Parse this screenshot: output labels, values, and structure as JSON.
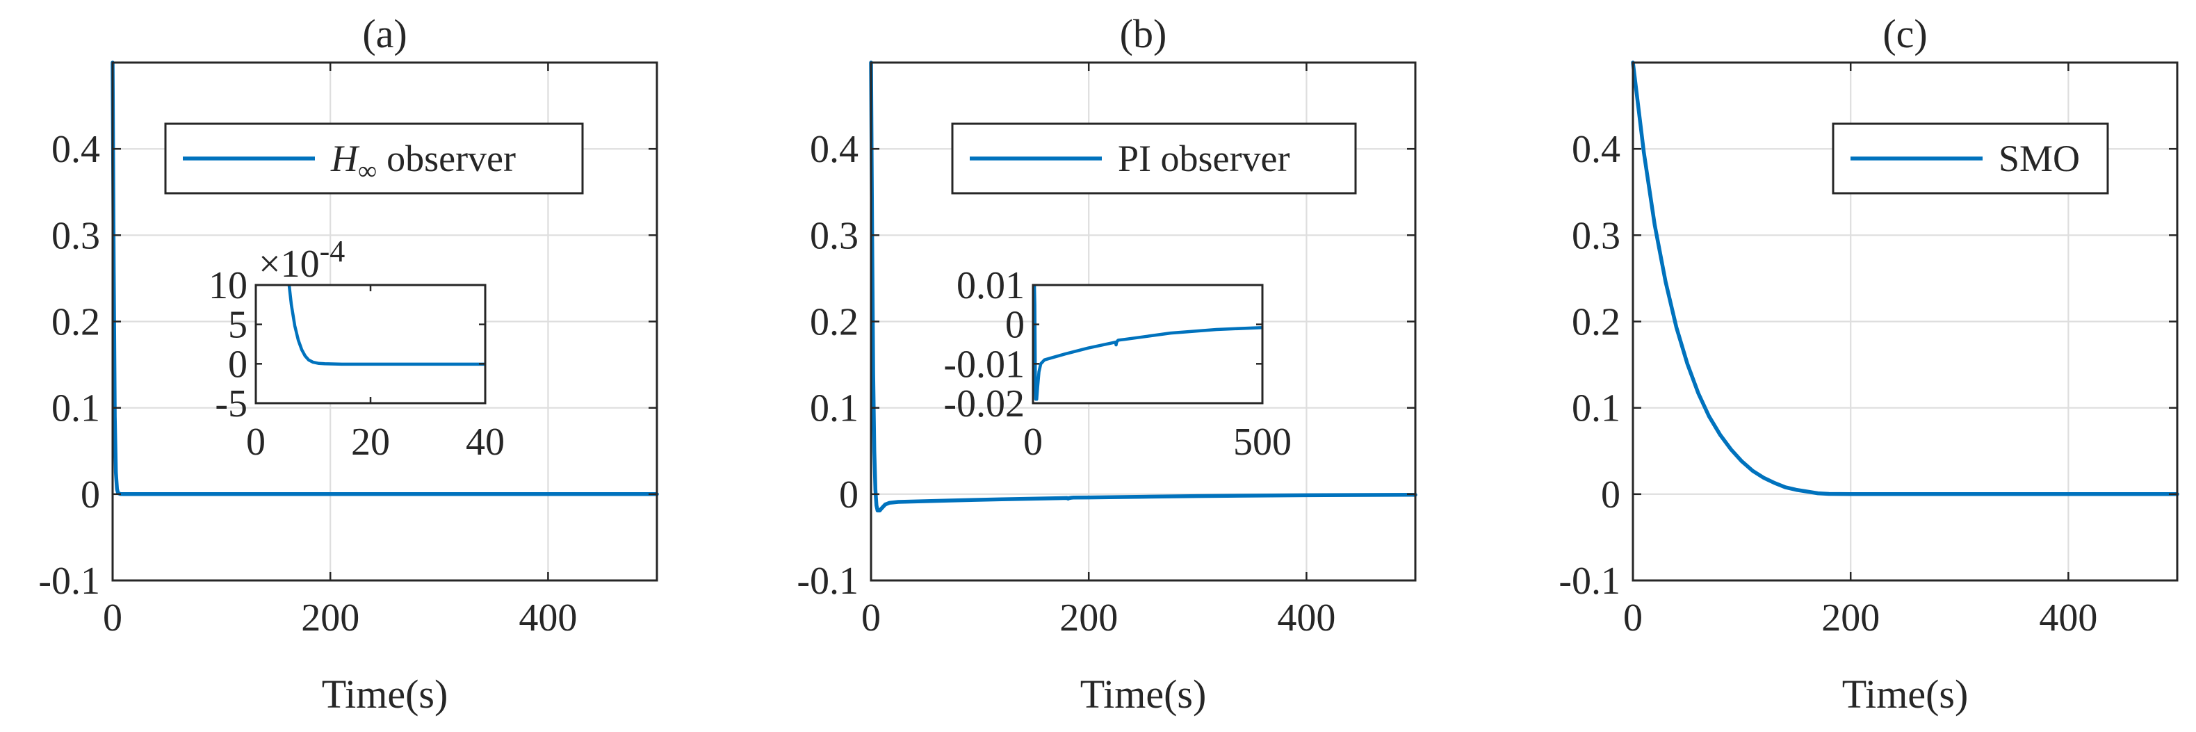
{
  "colors": {
    "series": "#0072bd",
    "axes": "#262626",
    "grid": "#dedede"
  },
  "chart_data": [
    {
      "type": "line",
      "title": "(a)",
      "xlabel": "Time(s)",
      "ylabel": "",
      "xlim": [
        0,
        500
      ],
      "ylim": [
        -0.1,
        0.5
      ],
      "xticks": [
        0,
        200,
        400
      ],
      "xtick_labels": [
        "0",
        "200",
        "400"
      ],
      "yticks": [
        -0.1,
        0,
        0.1,
        0.2,
        0.3,
        0.4
      ],
      "ytick_labels": [
        "-0.1",
        "0",
        "0.1",
        "0.2",
        "0.3",
        "0.4"
      ],
      "grid": true,
      "legend": {
        "position": "top-center",
        "entries": [
          {
            "name": "H∞ observer",
            "math_base": "H",
            "math_sub": "∞",
            "text": "observer"
          }
        ]
      },
      "series": [
        {
          "name": "H∞ observer",
          "x": [
            0,
            1,
            2,
            3,
            4,
            5,
            7,
            10,
            20,
            50,
            100,
            200,
            300,
            400,
            500
          ],
          "y": [
            0.5,
            0.26,
            0.09,
            0.025,
            0.006,
            0.0012,
            0.0002,
            0,
            0,
            0,
            0,
            0,
            0,
            0,
            0
          ]
        }
      ],
      "inset": {
        "xlim": [
          0,
          40
        ],
        "ylim": [
          -5,
          10
        ],
        "xticks": [
          0,
          20,
          40
        ],
        "xtick_labels": [
          "0",
          "20",
          "40"
        ],
        "yticks": [
          -5,
          0,
          5,
          10
        ],
        "ytick_labels": [
          "-5",
          "0",
          "5",
          "10"
        ],
        "exponent_label": {
          "base": "×10",
          "power": "-4"
        },
        "x": [
          5.8,
          6.2,
          6.8,
          7.4,
          8,
          8.6,
          9.2,
          10,
          11,
          12,
          15,
          20,
          30,
          40
        ],
        "y": [
          10,
          7.5,
          4.8,
          3,
          1.8,
          1,
          0.5,
          0.2,
          0.05,
          0,
          -0.05,
          -0.05,
          -0.05,
          -0.05
        ]
      }
    },
    {
      "type": "line",
      "title": "(b)",
      "xlabel": "Time(s)",
      "ylabel": "",
      "xlim": [
        0,
        500
      ],
      "ylim": [
        -0.1,
        0.5
      ],
      "xticks": [
        0,
        200,
        400
      ],
      "xtick_labels": [
        "0",
        "200",
        "400"
      ],
      "yticks": [
        -0.1,
        0,
        0.1,
        0.2,
        0.3,
        0.4
      ],
      "ytick_labels": [
        "-0.1",
        "0",
        "0.1",
        "0.2",
        "0.3",
        "0.4"
      ],
      "grid": true,
      "legend": {
        "position": "top-center",
        "entries": [
          {
            "name": "PI observer",
            "text": "PI observer"
          }
        ]
      },
      "series": [
        {
          "name": "PI observer",
          "x": [
            0,
            1,
            2,
            3,
            4,
            5,
            6,
            8,
            10,
            13,
            17,
            25,
            40,
            70,
            120,
            180,
            181,
            182,
            184,
            186,
            200,
            250,
            300,
            400,
            500
          ],
          "y": [
            0.5,
            0.3,
            0.14,
            0.05,
            0.005,
            -0.013,
            -0.019,
            -0.019,
            -0.016,
            -0.012,
            -0.01,
            -0.009,
            -0.0085,
            -0.0075,
            -0.006,
            -0.0045,
            -0.0052,
            -0.0046,
            -0.0042,
            -0.004,
            -0.0038,
            -0.003,
            -0.0022,
            -0.0013,
            -0.0008
          ]
        }
      ],
      "inset": {
        "xlim": [
          0,
          500
        ],
        "ylim": [
          -0.02,
          0.01
        ],
        "xticks": [
          0,
          500
        ],
        "xtick_labels": [
          "0",
          "500"
        ],
        "yticks": [
          -0.02,
          -0.01,
          0,
          0.01
        ],
        "ytick_labels": [
          "-0.02",
          "-0.01",
          "0",
          "0.01"
        ],
        "x": [
          0,
          1,
          2,
          3,
          4,
          5,
          6,
          8,
          10,
          13,
          17,
          25,
          40,
          70,
          120,
          180,
          181,
          182,
          184,
          186,
          200,
          250,
          300,
          400,
          500
        ],
        "y": [
          0.01,
          0.01,
          0.01,
          0.01,
          0.005,
          -0.013,
          -0.019,
          -0.019,
          -0.016,
          -0.012,
          -0.01,
          -0.009,
          -0.0085,
          -0.0075,
          -0.006,
          -0.0045,
          -0.0052,
          -0.0046,
          -0.0042,
          -0.004,
          -0.0038,
          -0.003,
          -0.0022,
          -0.0013,
          -0.0008
        ]
      }
    },
    {
      "type": "line",
      "title": "(c)",
      "xlabel": "Time(s)",
      "ylabel": "",
      "xlim": [
        0,
        500
      ],
      "ylim": [
        -0.1,
        0.5
      ],
      "xticks": [
        0,
        200,
        400
      ],
      "xtick_labels": [
        "0",
        "200",
        "400"
      ],
      "yticks": [
        -0.1,
        0,
        0.1,
        0.2,
        0.3,
        0.4
      ],
      "ytick_labels": [
        "-0.1",
        "0",
        "0.1",
        "0.2",
        "0.3",
        "0.4"
      ],
      "grid": true,
      "legend": {
        "position": "top-center",
        "entries": [
          {
            "name": "SMO",
            "text": "SMO"
          }
        ]
      },
      "series": [
        {
          "name": "SMO",
          "x": [
            0,
            10,
            20,
            30,
            40,
            50,
            60,
            70,
            80,
            90,
            100,
            110,
            120,
            130,
            140,
            150,
            160,
            170,
            180,
            200,
            300,
            400,
            500
          ],
          "y": [
            0.5,
            0.396,
            0.312,
            0.246,
            0.193,
            0.151,
            0.117,
            0.09,
            0.069,
            0.052,
            0.038,
            0.027,
            0.019,
            0.013,
            0.008,
            0.005,
            0.003,
            0.001,
            0.0003,
            0,
            0,
            0,
            0
          ]
        }
      ]
    }
  ]
}
